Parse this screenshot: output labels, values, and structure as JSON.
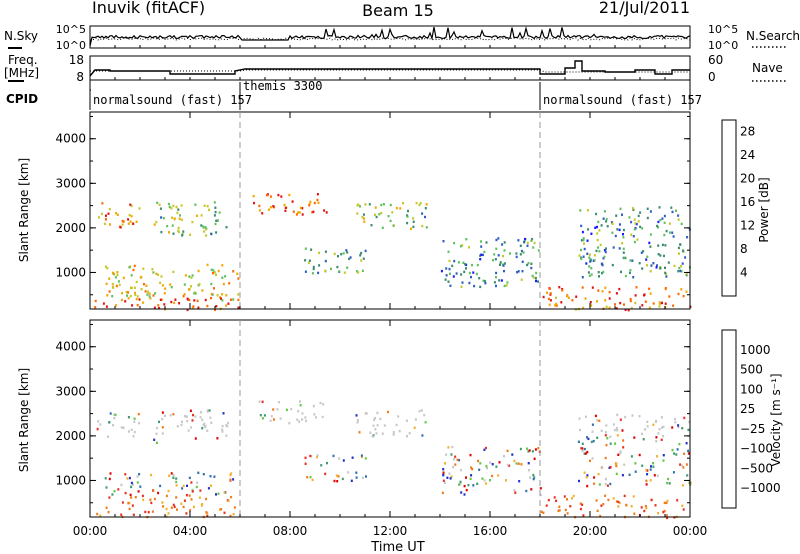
{
  "header": {
    "site": "Inuvik (fitACF)",
    "beam": "Beam 15",
    "date": "21/Jul/2011"
  },
  "noise_panel": {
    "left_label": "N.Sky",
    "right_label": "N.Search",
    "left_ticks": [
      "10^5",
      "10^0"
    ],
    "right_ticks": [
      "10^5",
      "10^0"
    ]
  },
  "freq_panel": {
    "left_label_line1": "Freq.",
    "left_label_line2": "[MHz]",
    "right_label": "Nave",
    "left_ticks": [
      "18",
      "8"
    ],
    "right_ticks": [
      "60",
      "0"
    ]
  },
  "cpid_panel": {
    "label": "CPID",
    "segments": [
      {
        "text": "normalsound (fast) 157",
        "start_hour": 0.0,
        "end_hour": 6.0
      },
      {
        "text": "themis 3300",
        "start_hour": 6.0,
        "end_hour": 18.0
      },
      {
        "text": "normalsound (fast) 157",
        "start_hour": 18.0,
        "end_hour": 24.0
      }
    ]
  },
  "chart_data": [
    {
      "type": "heatmap",
      "title": "",
      "xlabel": "Time UT",
      "ylabel": "Slant Range [km]",
      "xlim": [
        0,
        24
      ],
      "ylim": [
        180,
        4600
      ],
      "x_ticks": [
        "00:00",
        "04:00",
        "08:00",
        "12:00",
        "16:00",
        "20:00",
        "00:00"
      ],
      "y_ticks": [
        1000,
        2000,
        3000,
        4000
      ],
      "colorbar": {
        "label": "Power [dB]",
        "ticks": [
          "4",
          "8",
          "12",
          "16",
          "20",
          "24",
          "28"
        ],
        "range": [
          0,
          30
        ],
        "colors": [
          "#1a1aff",
          "#2d5cc2",
          "#3a8a6e",
          "#5fc05f",
          "#c4c828",
          "#f0a800",
          "#ff6a00",
          "#e01414"
        ]
      },
      "echo_regions": [
        {
          "t": [
            0.2,
            2.0
          ],
          "r": [
            2000,
            2600
          ],
          "level": 24
        },
        {
          "t": [
            0.5,
            6.0
          ],
          "r": [
            400,
            1200
          ],
          "level": 18
        },
        {
          "t": [
            0.0,
            6.0
          ],
          "r": [
            180,
            450
          ],
          "level": 28
        },
        {
          "t": [
            2.5,
            5.5
          ],
          "r": [
            1800,
            2600
          ],
          "level": 14
        },
        {
          "t": [
            6.5,
            9.5
          ],
          "r": [
            2300,
            2800
          ],
          "level": 26
        },
        {
          "t": [
            8.5,
            11.0
          ],
          "r": [
            1000,
            1600
          ],
          "level": 12
        },
        {
          "t": [
            10.5,
            13.5
          ],
          "r": [
            2000,
            2600
          ],
          "level": 14
        },
        {
          "t": [
            14.0,
            18.0
          ],
          "r": [
            700,
            1800
          ],
          "level": 10
        },
        {
          "t": [
            18.0,
            24.0
          ],
          "r": [
            180,
            700
          ],
          "level": 24
        },
        {
          "t": [
            19.5,
            24.0
          ],
          "r": [
            900,
            2500
          ],
          "level": 10
        }
      ]
    },
    {
      "type": "heatmap",
      "title": "",
      "xlabel": "Time UT",
      "ylabel": "Slant Range [km]",
      "xlim": [
        0,
        24
      ],
      "ylim": [
        180,
        4600
      ],
      "x_ticks": [
        "00:00",
        "04:00",
        "08:00",
        "12:00",
        "16:00",
        "20:00",
        "00:00"
      ],
      "y_ticks": [
        1000,
        2000,
        3000,
        4000
      ],
      "colorbar": {
        "label": "Velocity [m s⁻¹]",
        "ticks": [
          "1000",
          "500",
          "100",
          "25",
          "−25",
          "−100",
          "−500",
          "−1000"
        ],
        "colors": [
          "#2030c8",
          "#2f6fb0",
          "#3e9b6e",
          "#60c848",
          "#c8c8c8",
          "#f0b030",
          "#ef7a1a",
          "#e83020",
          "#e00000"
        ]
      }
    }
  ]
}
